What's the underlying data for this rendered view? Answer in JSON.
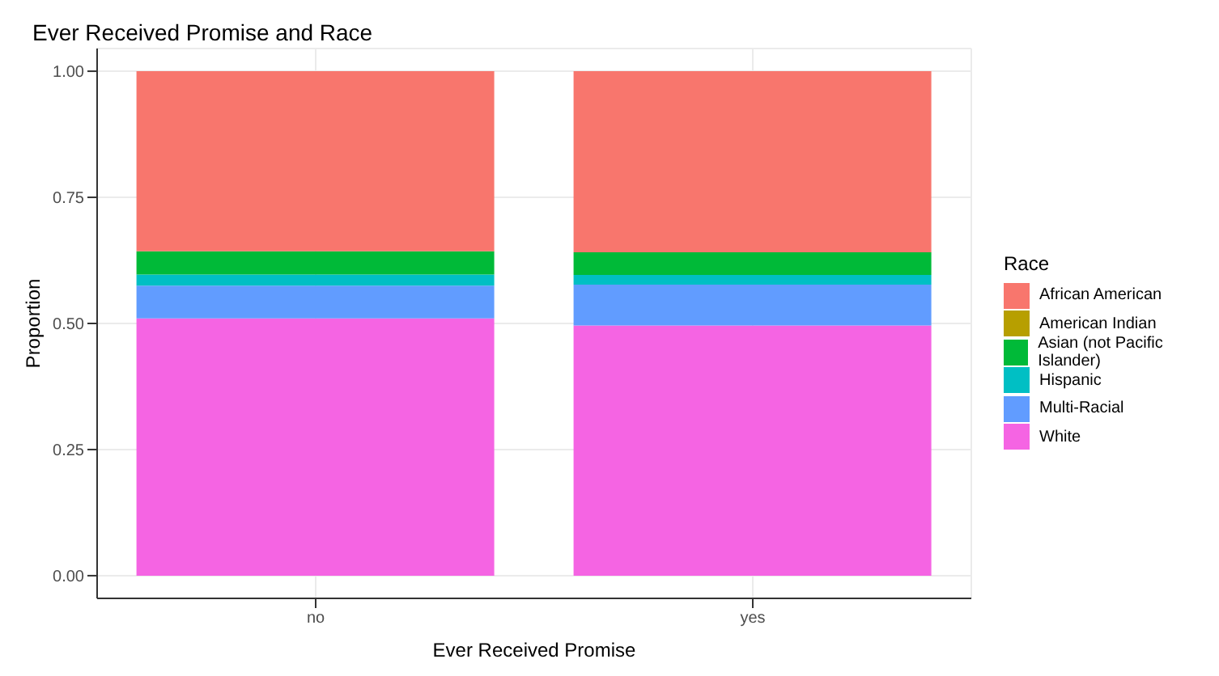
{
  "chart_data": {
    "type": "bar",
    "title": "Ever Received Promise and Race",
    "xlabel": "Ever Received Promise",
    "ylabel": "Proportion",
    "legend_title": "Race",
    "categories": [
      "no",
      "yes"
    ],
    "stacked": true,
    "series": [
      {
        "name": "White",
        "color": "#f564e3",
        "values": [
          0.51,
          0.496
        ]
      },
      {
        "name": "Multi-Racial",
        "color": "#619cff",
        "values": [
          0.065,
          0.081
        ]
      },
      {
        "name": "Hispanic",
        "color": "#00bfc4",
        "values": [
          0.022,
          0.019
        ]
      },
      {
        "name": "Asian (not Pacific Islander)",
        "color": "#00ba38",
        "values": [
          0.046,
          0.045
        ]
      },
      {
        "name": "American Indian",
        "color": "#b79f00",
        "values": [
          0,
          0
        ]
      },
      {
        "name": "African American",
        "color": "#f8766d",
        "values": [
          0.357,
          0.359
        ]
      }
    ],
    "ylim": [
      -0.045,
      1.045
    ],
    "yticks": [
      {
        "value": 0,
        "label": "0.00"
      },
      {
        "value": 0.25,
        "label": "0.25"
      },
      {
        "value": 0.5,
        "label": "0.50"
      },
      {
        "value": 0.75,
        "label": "0.75"
      },
      {
        "value": 1,
        "label": "1.00"
      }
    ],
    "grid": true,
    "legend": "right"
  }
}
